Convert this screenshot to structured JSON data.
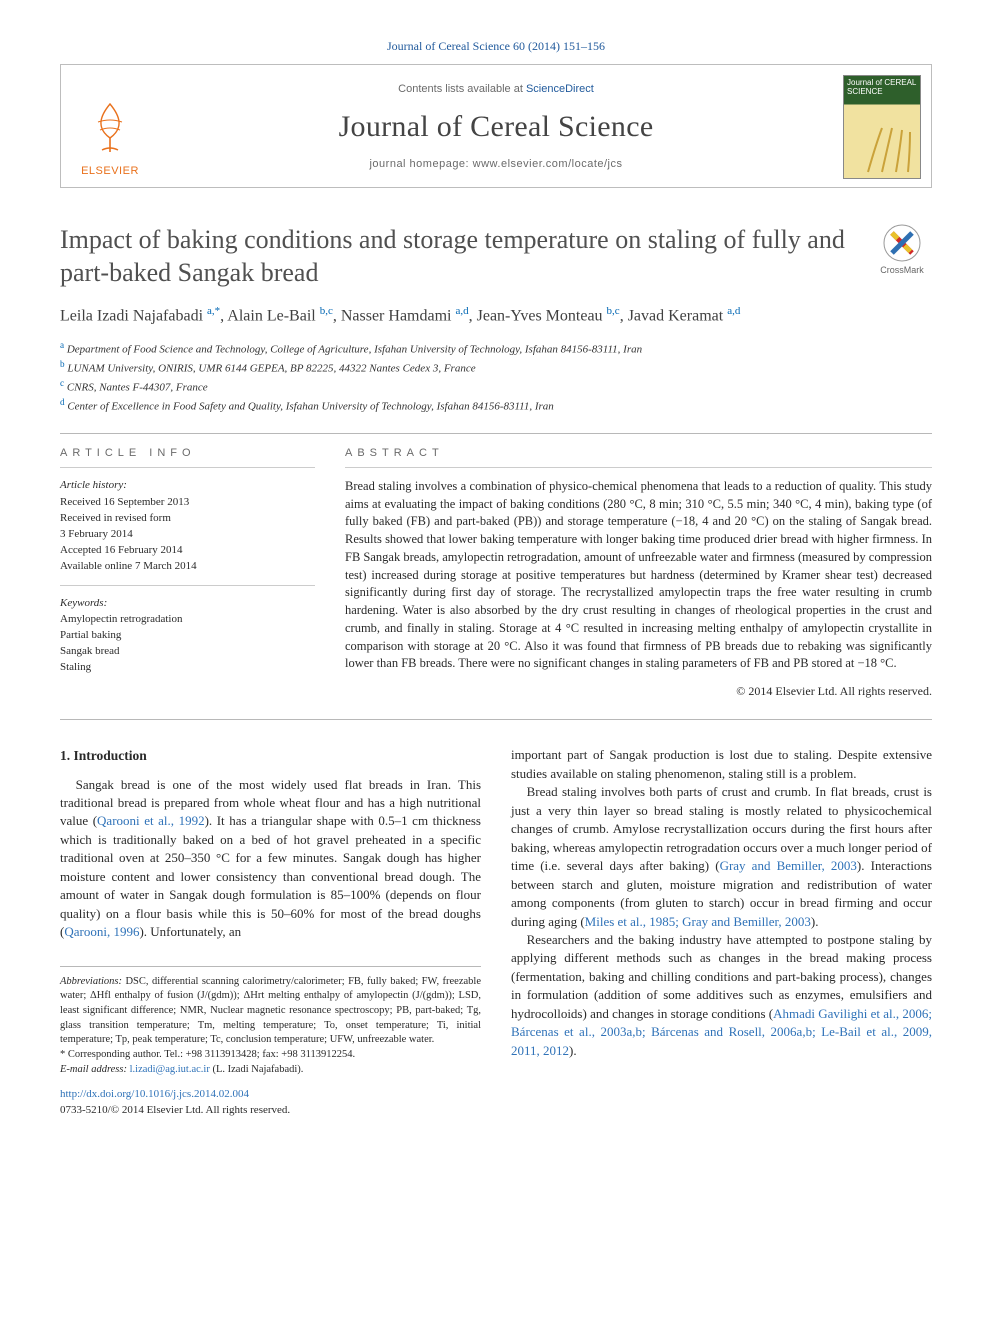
{
  "top_citation": "Journal of Cereal Science 60 (2014) 151–156",
  "header": {
    "contents_line_pre": "Contents lists available at ",
    "contents_line_link": "ScienceDirect",
    "journal_name": "Journal of Cereal Science",
    "homepage_label": "journal homepage: ",
    "homepage_url": "www.elsevier.com/locate/jcs",
    "elsevier_label": "ELSEVIER",
    "cover_top": "Journal of CEREAL SCIENCE"
  },
  "colors": {
    "link_blue": "#2f72b8",
    "elsevier_orange": "#e9711c",
    "body_text": "#2a2a2a",
    "muted": "#6a6a6a"
  },
  "title": "Impact of baking conditions and storage temperature on staling of fully and part-baked Sangak bread",
  "crossmark_label": "CrossMark",
  "authors_html": "Leila Izadi Najafabadi <sup>a,*</sup>, Alain Le-Bail <sup>b,c</sup>, Nasser Hamdami <sup>a,d</sup>, Jean-Yves Monteau <sup>b,c</sup>, Javad Keramat <sup>a,d</sup>",
  "affiliations": [
    {
      "sup": "a",
      "text": "Department of Food Science and Technology, College of Agriculture, Isfahan University of Technology, Isfahan 84156-83111, Iran"
    },
    {
      "sup": "b",
      "text": "LUNAM University, ONIRIS, UMR 6144 GEPEA, BP 82225, 44322 Nantes Cedex 3, France"
    },
    {
      "sup": "c",
      "text": "CNRS, Nantes F-44307, France"
    },
    {
      "sup": "d",
      "text": "Center of Excellence in Food Safety and Quality, Isfahan University of Technology, Isfahan 84156-83111, Iran"
    }
  ],
  "article_info": {
    "label": "ARTICLE INFO",
    "history_head": "Article history:",
    "history_lines": [
      "Received 16 September 2013",
      "Received in revised form",
      "3 February 2014",
      "Accepted 16 February 2014",
      "Available online 7 March 2014"
    ],
    "keywords_head": "Keywords:",
    "keywords": [
      "Amylopectin retrogradation",
      "Partial baking",
      "Sangak bread",
      "Staling"
    ]
  },
  "abstract": {
    "label": "ABSTRACT",
    "text": "Bread staling involves a combination of physico-chemical phenomena that leads to a reduction of quality. This study aims at evaluating the impact of baking conditions (280 °C, 8 min; 310 °C, 5.5 min; 340 °C, 4 min), baking type (of fully baked (FB) and part-baked (PB)) and storage temperature (−18, 4 and 20 °C) on the staling of Sangak bread. Results showed that lower baking temperature with longer baking time produced drier bread with higher firmness. In FB Sangak breads, amylopectin retrogradation, amount of unfreezable water and firmness (measured by compression test) increased during storage at positive temperatures but hardness (determined by Kramer shear test) decreased significantly during first day of storage. The recrystallized amylopectin traps the free water resulting in crumb hardening. Water is also absorbed by the dry crust resulting in changes of rheological properties in the crust and crumb, and finally in staling. Storage at 4 °C resulted in increasing melting enthalpy of amylopectin crystallite in comparison with storage at 20 °C. Also it was found that firmness of PB breads due to rebaking was significantly lower than FB breads. There were no significant changes in staling parameters of FB and PB stored at −18 °C.",
    "copyright": "© 2014 Elsevier Ltd. All rights reserved."
  },
  "intro_heading": "1. Introduction",
  "intro_left": {
    "p1_a": "Sangak bread is one of the most widely used flat breads in Iran. This traditional bread is prepared from whole wheat flour and has a high nutritional value (",
    "p1_cite1": "Qarooni et al., 1992",
    "p1_b": "). It has a triangular shape with 0.5–1 cm thickness which is traditionally baked on a bed of hot gravel preheated in a specific traditional oven at 250–350 °C for a few minutes. Sangak dough has higher moisture content and lower consistency than conventional bread dough. The amount of water in Sangak dough formulation is 85–100% (depends on flour quality) on a flour basis while this is 50–60% for most of the bread doughs (",
    "p1_cite2": "Qarooni, 1996",
    "p1_c": "). Unfortunately, an"
  },
  "intro_right": {
    "p1": "important part of Sangak production is lost due to staling. Despite extensive studies available on staling phenomenon, staling still is a problem.",
    "p2_a": "Bread staling involves both parts of crust and crumb. In flat breads, crust is just a very thin layer so bread staling is mostly related to physicochemical changes of crumb. Amylose recrystallization occurs during the first hours after baking, whereas amylopectin retrogradation occurs over a much longer period of time (i.e. several days after baking) (",
    "p2_cite1": "Gray and Bemiller, 2003",
    "p2_b": "). Interactions between starch and gluten, moisture migration and redistribution of water among components (from gluten to starch) occur in bread firming and occur during aging (",
    "p2_cite2": "Miles et al., 1985; Gray and Bemiller, 2003",
    "p2_c": ").",
    "p3_a": "Researchers and the baking industry have attempted to postpone staling by applying different methods such as changes in the bread making process (fermentation, baking and chilling conditions and part-baking process), changes in formulation (addition of some additives such as enzymes, emulsifiers and hydrocolloids) and changes in storage conditions (",
    "p3_cite1": "Ahmadi Gavilighi et al., 2006; Bárcenas et al., 2003a,b; Bárcenas and Rosell, 2006a,b; Le-Bail et al., 2009, 2011, 2012",
    "p3_b": ")."
  },
  "footnotes": {
    "abbrev_label": "Abbreviations:",
    "abbrev_text": " DSC, differential scanning calorimetry/calorimeter; FB, fully baked; FW, freezable water; ΔHfl enthalpy of fusion (J/(gdm)); ΔHrt melting enthalpy of amylopectin (J/(gdm)); LSD, least significant difference; NMR, Nuclear magnetic resonance spectroscopy; PB, part-baked; Tg, glass transition temperature; Tm, melting temperature; To, onset temperature; Ti, initial temperature; Tp, peak temperature; Tc, conclusion temperature; UFW, unfreezable water.",
    "corr_mark": "*",
    "corr_text": " Corresponding author. Tel.: +98 3113913428; fax: +98 3113912254.",
    "email_label": "E-mail address:",
    "email": "l.izadi@ag.iut.ac.ir",
    "email_tail": " (L. Izadi Najafabadi)."
  },
  "bottom": {
    "doi_url": "http://dx.doi.org/10.1016/j.jcs.2014.02.004",
    "issn_line": "0733-5210/© 2014 Elsevier Ltd. All rights reserved."
  }
}
